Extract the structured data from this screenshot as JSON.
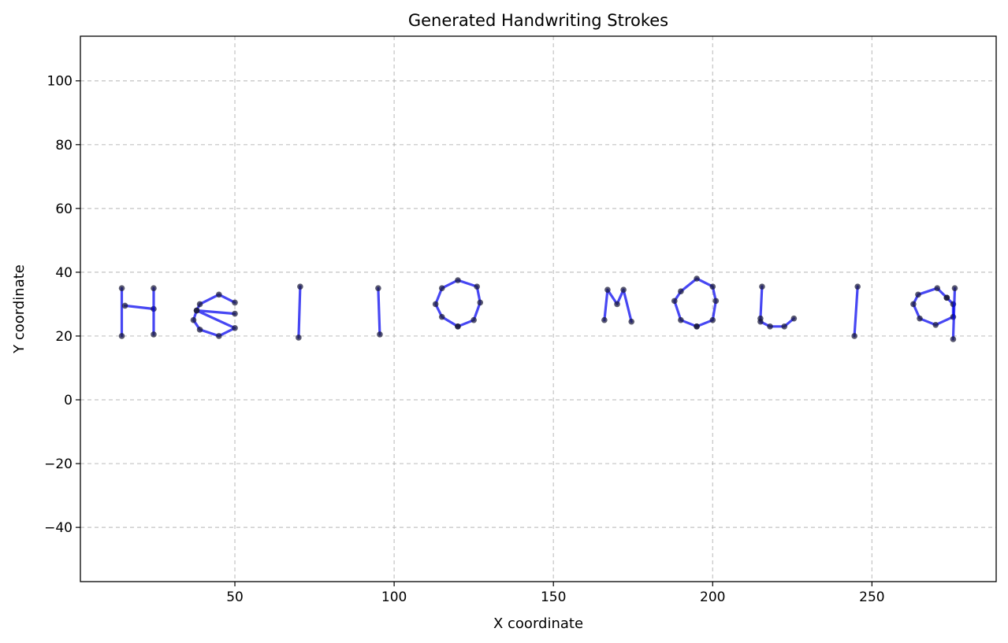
{
  "chart_data": {
    "type": "line",
    "title": "Generated Handwriting Strokes",
    "xlabel": "X coordinate",
    "ylabel": "Y coordinate",
    "xlim": [
      1.5,
      289
    ],
    "ylim": [
      -57,
      114
    ],
    "xticks": [
      50,
      100,
      150,
      200,
      250
    ],
    "yticks": [
      -40,
      -20,
      0,
      20,
      40,
      60,
      80,
      100
    ],
    "xtick_labels": [
      "50",
      "100",
      "150",
      "200",
      "250"
    ],
    "ytick_labels": [
      "−40",
      "−20",
      "0",
      "20",
      "40",
      "60",
      "80",
      "100"
    ],
    "grid": true,
    "line_color": "#0000ee",
    "marker_color": "#1a1a3a",
    "series": [
      {
        "points": [
          [
            14.5,
            35
          ],
          [
            14.5,
            20
          ]
        ]
      },
      {
        "points": [
          [
            15.5,
            29.5
          ],
          [
            24.5,
            28.5
          ]
        ]
      },
      {
        "points": [
          [
            24.5,
            35
          ],
          [
            24.5,
            20.5
          ]
        ]
      },
      {
        "points": [
          [
            50,
            30.5
          ],
          [
            45,
            33
          ],
          [
            39,
            30
          ],
          [
            38,
            28
          ],
          [
            50,
            22.5
          ],
          [
            45,
            20
          ],
          [
            39,
            22
          ],
          [
            37,
            25
          ],
          [
            38,
            28
          ],
          [
            50,
            27
          ]
        ]
      },
      {
        "points": [
          [
            70.5,
            35.5
          ],
          [
            70,
            19.5
          ]
        ]
      },
      {
        "points": [
          [
            95,
            35
          ],
          [
            95.5,
            20.5
          ]
        ]
      },
      {
        "points": [
          [
            120,
            23
          ],
          [
            125,
            25
          ],
          [
            127,
            30.5
          ],
          [
            126,
            35.5
          ],
          [
            120,
            37.5
          ],
          [
            115,
            35
          ],
          [
            113,
            30
          ],
          [
            115,
            26
          ],
          [
            120,
            23
          ]
        ]
      },
      {
        "points": [
          [
            166,
            25
          ],
          [
            167,
            34.5
          ],
          [
            170,
            30
          ],
          [
            172,
            34.5
          ],
          [
            174.5,
            24.5
          ]
        ]
      },
      {
        "points": [
          [
            195,
            23
          ],
          [
            200,
            25
          ],
          [
            201,
            31
          ],
          [
            200,
            35.5
          ],
          [
            195,
            38
          ],
          [
            190,
            34
          ],
          [
            188,
            31
          ],
          [
            190,
            25
          ],
          [
            195,
            23
          ]
        ]
      },
      {
        "points": [
          [
            215.5,
            35.5
          ],
          [
            215,
            25.5
          ],
          [
            215,
            24.5
          ],
          [
            218,
            23
          ],
          [
            222.5,
            23
          ],
          [
            225.5,
            25.5
          ]
        ]
      },
      {
        "points": [
          [
            245.5,
            35.5
          ],
          [
            244.5,
            20
          ]
        ]
      },
      {
        "points": [
          [
            273.5,
            32
          ],
          [
            270.5,
            35
          ],
          [
            264.5,
            33
          ],
          [
            263,
            30
          ],
          [
            265,
            25.5
          ],
          [
            270,
            23.5
          ],
          [
            275.5,
            26
          ],
          [
            275.5,
            30
          ],
          [
            273.5,
            32
          ]
        ]
      },
      {
        "points": [
          [
            276,
            35
          ],
          [
            275.5,
            19
          ]
        ]
      }
    ]
  }
}
